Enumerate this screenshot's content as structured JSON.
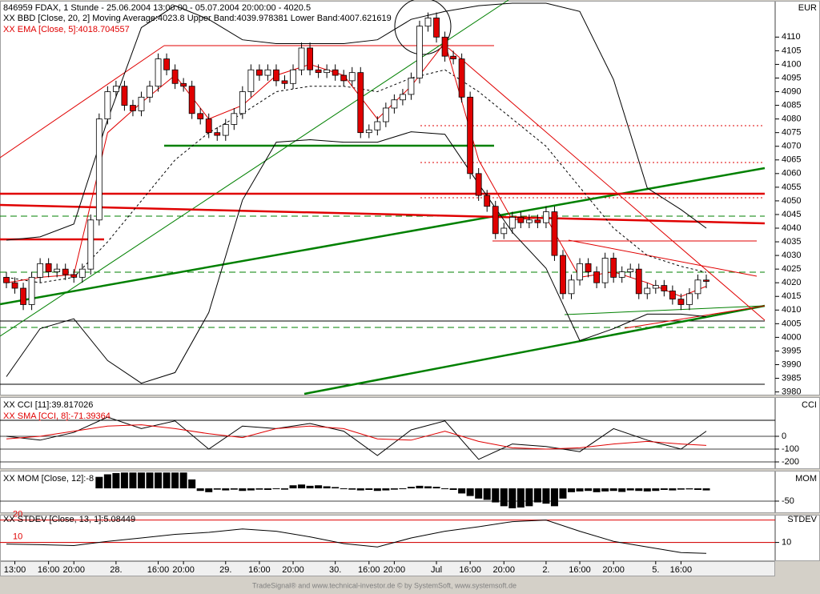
{
  "chart_data": [
    {
      "type": "candlestick",
      "title": "846959 FDAX, 1 Stunde - 25.06.2004 13:00:00 - 05.07.2004 20:00:00 - 4020.5",
      "axis_label": "EUR",
      "categories": [
        null,
        "13:00",
        null,
        null,
        null,
        "16:00",
        null,
        null,
        "20:00",
        null,
        null,
        null,
        null,
        "28.",
        null,
        null,
        null,
        null,
        "16:00",
        null,
        null,
        "20:00",
        null,
        null,
        null,
        null,
        "29.",
        null,
        null,
        null,
        "16:00",
        null,
        null,
        null,
        "20:00",
        null,
        null,
        null,
        null,
        "30.",
        null,
        null,
        null,
        "16:00",
        null,
        null,
        "20:00",
        null,
        null,
        null,
        null,
        "Jul",
        null,
        null,
        null,
        "16:00",
        null,
        null,
        null,
        "20:00",
        null,
        null,
        null,
        null,
        "2.",
        null,
        null,
        null,
        "16:00",
        null,
        null,
        null,
        "20:00",
        null,
        null,
        null,
        null,
        "5.",
        null,
        null,
        "16:00",
        null,
        null,
        null
      ],
      "open": [
        4022,
        4020,
        4018,
        4012,
        4022,
        4027,
        4024,
        4025,
        4023,
        4022,
        4025,
        4043,
        4080,
        4090,
        4092,
        4085,
        4083,
        4088,
        4092,
        4102,
        4098,
        4093,
        4092,
        4082,
        4080,
        4075,
        4074,
        4078,
        4082,
        4090,
        4098,
        4096,
        4098,
        4094,
        4093,
        4098,
        4106,
        4098,
        4097,
        4098,
        4096,
        4094,
        4097,
        4075,
        4076,
        4079,
        4084,
        4087,
        4089,
        4095,
        4114,
        4117,
        4110,
        4103,
        4102,
        4088,
        4060,
        4052,
        4048,
        4038,
        4040,
        4044,
        4042,
        4043,
        4042,
        4046,
        4030,
        4016,
        4021,
        4027,
        4024,
        4020,
        4029,
        4022,
        4024,
        4025,
        4016,
        4018,
        4019,
        4017,
        4014,
        4012,
        4016,
        4021
      ],
      "high": [
        4024,
        4022,
        4020,
        4024,
        4029,
        4029,
        4027,
        4027,
        4025,
        4027,
        4045,
        4082,
        4092,
        4094,
        4094,
        4087,
        4090,
        4094,
        4104,
        4104,
        4100,
        4095,
        4094,
        4084,
        4082,
        4077,
        4080,
        4084,
        4092,
        4100,
        4100,
        4100,
        4100,
        4096,
        4100,
        4108,
        4108,
        4100,
        4100,
        4100,
        4098,
        4099,
        4099,
        4078,
        4081,
        4086,
        4089,
        4091,
        4097,
        4116,
        4119,
        4119,
        4112,
        4105,
        4104,
        4090,
        4062,
        4054,
        4050,
        4042,
        4046,
        4046,
        4045,
        4045,
        4048,
        4048,
        4032,
        4023,
        4029,
        4029,
        4026,
        4031,
        4031,
        4026,
        4027,
        4027,
        4020,
        4021,
        4021,
        4019,
        4016,
        4018,
        4023,
        4023
      ],
      "low": [
        4018,
        4016,
        4010,
        4010,
        4020,
        4022,
        4022,
        4021,
        4020,
        4020,
        4023,
        4041,
        4078,
        4088,
        4083,
        4081,
        4081,
        4086,
        4090,
        4096,
        4091,
        4090,
        4080,
        4078,
        4073,
        4072,
        4072,
        4076,
        4080,
        4088,
        4094,
        4094,
        4092,
        4091,
        4091,
        4096,
        4096,
        4095,
        4095,
        4094,
        4092,
        4092,
        4073,
        4073,
        4074,
        4077,
        4082,
        4085,
        4087,
        4093,
        4112,
        4108,
        4101,
        4100,
        4086,
        4058,
        4050,
        4046,
        4036,
        4036,
        4038,
        4040,
        4040,
        4040,
        4040,
        4028,
        4014,
        4014,
        4019,
        4022,
        4018,
        4018,
        4020,
        4020,
        4022,
        4014,
        4014,
        4016,
        4015,
        4012,
        4010,
        4010,
        4014,
        4018
      ],
      "close": [
        4020,
        4018,
        4012,
        4022,
        4027,
        4024,
        4025,
        4023,
        4022,
        4025,
        4043,
        4080,
        4090,
        4092,
        4085,
        4083,
        4088,
        4092,
        4102,
        4098,
        4093,
        4092,
        4082,
        4080,
        4075,
        4074,
        4078,
        4082,
        4090,
        4098,
        4096,
        4098,
        4094,
        4093,
        4098,
        4106,
        4098,
        4097,
        4098,
        4096,
        4094,
        4097,
        4075,
        4076,
        4079,
        4084,
        4087,
        4089,
        4095,
        4114,
        4117,
        4110,
        4103,
        4102,
        4088,
        4060,
        4052,
        4048,
        4038,
        4040,
        4044,
        4042,
        4043,
        4042,
        4046,
        4030,
        4016,
        4021,
        4027,
        4024,
        4020,
        4029,
        4022,
        4024,
        4025,
        4016,
        4018,
        4019,
        4017,
        4014,
        4012,
        4016,
        4021,
        4020.5
      ],
      "up_color": "#ffffff",
      "down_color": "#e00000",
      "ylim": [
        3979,
        4123
      ],
      "yticks": [
        3980,
        3985,
        3990,
        3995,
        4000,
        4005,
        4010,
        4015,
        4020,
        4025,
        4030,
        4035,
        4040,
        4045,
        4050,
        4055,
        4060,
        4065,
        4070,
        4075,
        4080,
        4085,
        4090,
        4095,
        4100,
        4105,
        4110
      ],
      "overlays": [
        {
          "name": "XX BBD [Close, 20, 2] Moving Average:4023.8 Upper Band:4039.978381 Lower Band:4007.621619",
          "color": "#000000",
          "x": [
            0,
            4,
            8,
            12,
            16,
            20,
            24,
            28,
            32,
            36,
            40,
            44,
            48,
            52,
            56,
            60,
            64,
            68,
            72,
            76,
            80,
            83
          ],
          "upper": [
            4035.6,
            4036.8,
            4041.5,
            4079.7,
            4113.5,
            4121.5,
            4116.5,
            4109,
            4107.6,
            4107.6,
            4107.6,
            4109,
            4116.5,
            4119.4,
            4121.5,
            4122.4,
            4122.4,
            4119.4,
            4094.4,
            4054.7,
            4046.8,
            4040
          ],
          "lower": [
            3985.6,
            4003.2,
            4006.8,
            3991.5,
            3983.2,
            3987.1,
            4009.1,
            4050.3,
            4071.5,
            4072.4,
            4071.5,
            4071.5,
            4075.3,
            4074.4,
            4056.2,
            4038.5,
            4025.3,
            3998.8,
            4003.2,
            4008.5,
            4008.5,
            4007.6
          ],
          "middle": [
            4022,
            4020,
            4022,
            4035,
            4050,
            4065,
            4075,
            4082,
            4090,
            4092,
            4092,
            4090,
            4095,
            4098,
            4090,
            4080,
            4070,
            4055,
            4040,
            4030,
            4026,
            4023.8
          ]
        },
        {
          "name": "XX EMA [Close, 5]:4018.704557",
          "color": "#e00000",
          "x": [
            0,
            4,
            8,
            12,
            16,
            20,
            24,
            28,
            32,
            36,
            40,
            44,
            48,
            52,
            56,
            60,
            64,
            68,
            72,
            76,
            80,
            83
          ],
          "values": [
            4020,
            4022,
            4023,
            4075,
            4086,
            4096,
            4080,
            4085,
            4096,
            4100,
            4096,
            4080,
            4092,
            4108,
            4065,
            4043,
            4044,
            4022,
            4024,
            4020,
            4015,
            4018.7
          ]
        }
      ]
    },
    {
      "type": "line",
      "axis_label": "CCI",
      "x": [
        0,
        4,
        8,
        12,
        16,
        20,
        24,
        28,
        32,
        36,
        40,
        44,
        48,
        52,
        56,
        60,
        64,
        68,
        72,
        76,
        80,
        83
      ],
      "series": [
        {
          "name": "XX CCI [11]:39.817026",
          "color": "#000000",
          "values": [
            0,
            -30,
            30,
            150,
            60,
            120,
            -100,
            80,
            60,
            100,
            40,
            -150,
            50,
            120,
            -180,
            -60,
            -80,
            -120,
            60,
            -30,
            -100,
            39.8
          ]
        },
        {
          "name": "XX SMA [CCI, 8]:-71.39364",
          "color": "#e00000",
          "values": [
            -20,
            0,
            40,
            80,
            90,
            60,
            20,
            -10,
            60,
            80,
            60,
            -20,
            -30,
            40,
            -40,
            -90,
            -100,
            -90,
            -60,
            -40,
            -60,
            -71.4
          ]
        }
      ],
      "ylim": [
        -250,
        300
      ],
      "yticks": [
        0,
        -100,
        -200
      ]
    },
    {
      "type": "bar",
      "axis_label": "MOM",
      "series": [
        {
          "name": "XX MOM [Close, 12]:-8",
          "color": "#000000",
          "values": [
            null,
            null,
            null,
            null,
            null,
            null,
            null,
            null,
            null,
            null,
            null,
            45,
            55,
            60,
            62,
            62,
            62,
            62,
            62,
            62,
            62,
            62,
            35,
            -10,
            -15,
            -5,
            -8,
            -5,
            -10,
            -8,
            -5,
            -6,
            -3,
            -5,
            12,
            15,
            10,
            12,
            8,
            5,
            -3,
            -5,
            -8,
            -6,
            -10,
            -8,
            -5,
            -3,
            6,
            10,
            8,
            6,
            -3,
            -6,
            -20,
            -30,
            -40,
            -45,
            -55,
            -70,
            -78,
            -75,
            -70,
            -55,
            -60,
            -70,
            -40,
            -15,
            -12,
            -10,
            -15,
            -12,
            -10,
            -14,
            -8,
            -10,
            -12,
            -10,
            -6,
            -8,
            -5,
            -4,
            -6,
            -8
          ]
        }
      ],
      "ylim": [
        -94,
        66
      ],
      "yticks": [
        -50
      ]
    },
    {
      "type": "line",
      "axis_label": "STDEV",
      "x": [
        0,
        4,
        8,
        12,
        16,
        20,
        24,
        28,
        32,
        36,
        40,
        44,
        48,
        52,
        56,
        60,
        64,
        68,
        72,
        76,
        80,
        83
      ],
      "series": [
        {
          "name": "XX STDEV [Close, 13, 1]:5.08449",
          "color": "#000000",
          "values": [
            9.3,
            9.0,
            8.6,
            10.5,
            12,
            13.6,
            14.5,
            16,
            15,
            12.5,
            9.5,
            8,
            12,
            15,
            17,
            19.3,
            20,
            15,
            10.5,
            8,
            5.5,
            5.1
          ]
        }
      ],
      "levels": [
        20,
        10
      ],
      "level_color": "#e00000",
      "ylim": [
        2,
        22
      ],
      "yticks": [
        10
      ]
    }
  ],
  "footer": "TradeSignal® and www.technical-investor.de © by SystemSoft, www.systemsoft.de"
}
